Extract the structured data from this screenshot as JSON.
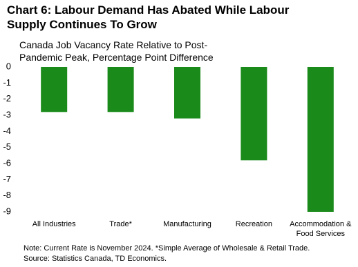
{
  "chart_data": {
    "type": "bar",
    "title": "Chart 6: Labour Demand Has Abated While Labour Supply Continues To Grow",
    "subtitle": "Canada Job Vacancy Rate Relative to Post-Pandemic Peak, Percentage Point Difference",
    "categories": [
      "All Industries",
      "Trade*",
      "Manufacturing",
      "Recreation",
      "Accommodation & Food Services"
    ],
    "values": [
      -2.8,
      -2.8,
      -3.2,
      -5.8,
      -9.0
    ],
    "color": "#1a8a1a",
    "ylim": [
      -9,
      0
    ],
    "yticks": [
      0,
      -1,
      -2,
      -3,
      -4,
      -5,
      -6,
      -7,
      -8,
      -9
    ],
    "grid": false,
    "notes": [
      "Note: Current Rate is November 2024. *Simple Average of Wholesale & Retail Trade.",
      "Source: Statistics Canada, TD Economics."
    ]
  }
}
